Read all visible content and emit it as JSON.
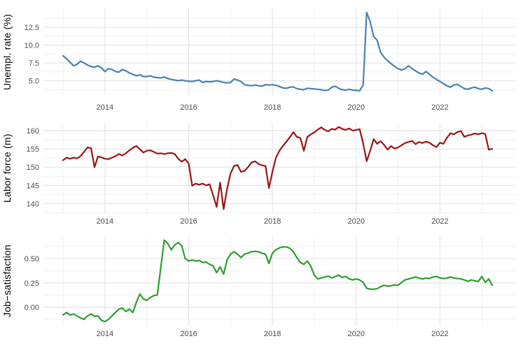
{
  "page": {
    "background": "#FFFFFF"
  },
  "grid": {
    "major_color": "#E3E3E3",
    "minor_color": "#EFEFEF"
  },
  "axis": {
    "tick_label_color": "#4D4D4D",
    "title_color": "#000000"
  },
  "x_axis": {
    "xlim": [
      2012.53,
      2023.8
    ],
    "major_years": [
      2014,
      2016,
      2018,
      2020,
      2022
    ],
    "major_labels": [
      "2014",
      "2016",
      "2018",
      "2020",
      "2022"
    ],
    "minor_years": [
      2013,
      2015,
      2017,
      2019,
      2021,
      2023
    ]
  },
  "chart_data": [
    {
      "type": "line",
      "title": "",
      "xlabel": "",
      "ylabel": "Unempl. rate (%)",
      "color": "#4682B4",
      "ylim": [
        3.05,
        15.15
      ],
      "y_major_ticks": [
        5.0,
        7.5,
        10.0,
        12.5
      ],
      "y_tick_labels": [
        "5.0",
        "7.5",
        "10.0",
        "12.5"
      ],
      "y_minor_ticks": [
        3.75,
        6.25,
        8.75,
        11.25,
        13.75
      ],
      "x_start_year": 2013,
      "x_start_month": 1,
      "frequency": "monthly",
      "legend": "none",
      "grid": "on",
      "values": [
        8.5,
        8.1,
        7.6,
        7.1,
        7.3,
        7.75,
        7.5,
        7.2,
        7.0,
        6.9,
        7.1,
        6.8,
        6.3,
        6.7,
        6.6,
        6.3,
        6.2,
        6.6,
        6.4,
        6.1,
        5.9,
        5.7,
        5.85,
        5.6,
        5.6,
        5.7,
        5.5,
        5.45,
        5.4,
        5.55,
        5.3,
        5.2,
        5.1,
        5.0,
        5.1,
        5.0,
        4.95,
        4.9,
        5.0,
        5.1,
        4.75,
        4.9,
        4.85,
        4.9,
        5.0,
        4.9,
        4.75,
        4.7,
        4.75,
        5.25,
        5.1,
        4.9,
        4.45,
        4.35,
        4.3,
        4.4,
        4.3,
        4.25,
        4.45,
        4.4,
        4.45,
        4.35,
        4.2,
        4.0,
        3.95,
        4.1,
        4.15,
        3.9,
        3.8,
        3.75,
        3.95,
        3.9,
        3.85,
        3.8,
        3.75,
        3.65,
        3.7,
        4.1,
        4.25,
        3.95,
        3.75,
        3.7,
        3.8,
        3.7,
        3.65,
        3.6,
        4.4,
        14.6,
        13.3,
        11.2,
        10.7,
        9.0,
        8.3,
        7.8,
        7.4,
        7.0,
        6.7,
        6.5,
        6.7,
        7.1,
        6.7,
        6.4,
        6.1,
        5.9,
        6.3,
        5.9,
        5.5,
        5.2,
        4.9,
        4.6,
        4.3,
        4.1,
        4.4,
        4.5,
        4.2,
        3.9,
        3.8,
        4.0,
        4.1,
        3.9,
        3.8,
        4.0,
        3.9,
        3.6
      ]
    },
    {
      "type": "line",
      "title": "",
      "xlabel": "",
      "ylabel": "Labor force (m)",
      "color": "#9B1414",
      "ylim": [
        137.4,
        162.1
      ],
      "y_major_ticks": [
        140,
        145,
        150,
        155,
        160
      ],
      "y_tick_labels": [
        "140",
        "145",
        "150",
        "155",
        "160"
      ],
      "y_minor_ticks": [
        137.5,
        142.5,
        147.5,
        152.5,
        157.5
      ],
      "x_start_year": 2013,
      "x_start_month": 1,
      "frequency": "monthly",
      "legend": "none",
      "grid": "on",
      "values": [
        151.9,
        152.6,
        152.3,
        152.6,
        152.4,
        153.0,
        154.2,
        155.4,
        155.2,
        150.0,
        152.9,
        152.7,
        152.3,
        152.2,
        152.6,
        153.0,
        153.6,
        153.2,
        153.8,
        154.6,
        155.3,
        155.8,
        154.9,
        154.0,
        154.5,
        154.6,
        154.2,
        153.7,
        153.8,
        153.6,
        153.8,
        153.9,
        153.6,
        152.3,
        151.5,
        152.2,
        151.0,
        144.9,
        145.5,
        145.2,
        145.5,
        145.0,
        145.3,
        142.3,
        139.1,
        145.8,
        138.5,
        144.0,
        148.3,
        150.3,
        150.6,
        148.7,
        149.0,
        150.0,
        151.3,
        151.6,
        150.9,
        150.5,
        150.3,
        144.3,
        148.7,
        152.6,
        154.5,
        155.8,
        157.0,
        158.2,
        159.6,
        158.3,
        158.0,
        154.5,
        158.3,
        159.0,
        159.5,
        160.3,
        160.9,
        160.2,
        159.8,
        160.5,
        160.3,
        161.0,
        160.5,
        160.2,
        160.6,
        160.0,
        160.2,
        160.4,
        156.5,
        151.6,
        154.5,
        157.7,
        156.4,
        157.1,
        156.1,
        154.8,
        155.8,
        155.1,
        155.4,
        156.0,
        156.6,
        156.9,
        157.2,
        156.3,
        156.9,
        156.6,
        157.0,
        156.7,
        156.0,
        155.5,
        156.7,
        156.4,
        158.0,
        159.3,
        159.0,
        159.6,
        159.9,
        158.3,
        158.7,
        158.9,
        159.2,
        159.0,
        159.3,
        159.1,
        154.8,
        155.0
      ]
    },
    {
      "type": "line",
      "title": "",
      "xlabel": "",
      "ylabel": "Job−satisfaction",
      "color": "#2BA02B",
      "ylim": [
        -0.19,
        0.73
      ],
      "y_major_ticks": [
        0.0,
        0.25,
        0.5
      ],
      "y_tick_labels": [
        "0.00",
        "0.25",
        "0.50"
      ],
      "y_minor_ticks": [
        -0.125,
        0.125,
        0.375,
        0.625
      ],
      "x_start_year": 2013,
      "x_start_month": 1,
      "frequency": "monthly",
      "legend": "none",
      "grid": "on",
      "values": [
        -0.08,
        -0.055,
        -0.08,
        -0.07,
        -0.09,
        -0.11,
        -0.125,
        -0.09,
        -0.07,
        -0.095,
        -0.09,
        -0.135,
        -0.15,
        -0.125,
        -0.09,
        -0.055,
        -0.02,
        -0.01,
        -0.045,
        -0.02,
        -0.055,
        0.05,
        0.135,
        0.085,
        0.07,
        0.1,
        0.12,
        0.125,
        0.41,
        0.69,
        0.655,
        0.59,
        0.64,
        0.665,
        0.63,
        0.5,
        0.475,
        0.485,
        0.475,
        0.48,
        0.46,
        0.465,
        0.44,
        0.425,
        0.355,
        0.415,
        0.34,
        0.485,
        0.545,
        0.57,
        0.545,
        0.51,
        0.545,
        0.555,
        0.57,
        0.575,
        0.57,
        0.555,
        0.545,
        0.45,
        0.555,
        0.59,
        0.61,
        0.62,
        0.62,
        0.605,
        0.57,
        0.51,
        0.46,
        0.44,
        0.475,
        0.42,
        0.33,
        0.29,
        0.3,
        0.31,
        0.32,
        0.3,
        0.315,
        0.33,
        0.305,
        0.315,
        0.29,
        0.28,
        0.29,
        0.28,
        0.255,
        0.195,
        0.185,
        0.185,
        0.19,
        0.21,
        0.225,
        0.215,
        0.22,
        0.23,
        0.225,
        0.255,
        0.28,
        0.29,
        0.3,
        0.31,
        0.3,
        0.29,
        0.3,
        0.295,
        0.31,
        0.315,
        0.3,
        0.295,
        0.3,
        0.31,
        0.3,
        0.295,
        0.29,
        0.28,
        0.265,
        0.28,
        0.27,
        0.265,
        0.315,
        0.255,
        0.29,
        0.225
      ]
    }
  ]
}
